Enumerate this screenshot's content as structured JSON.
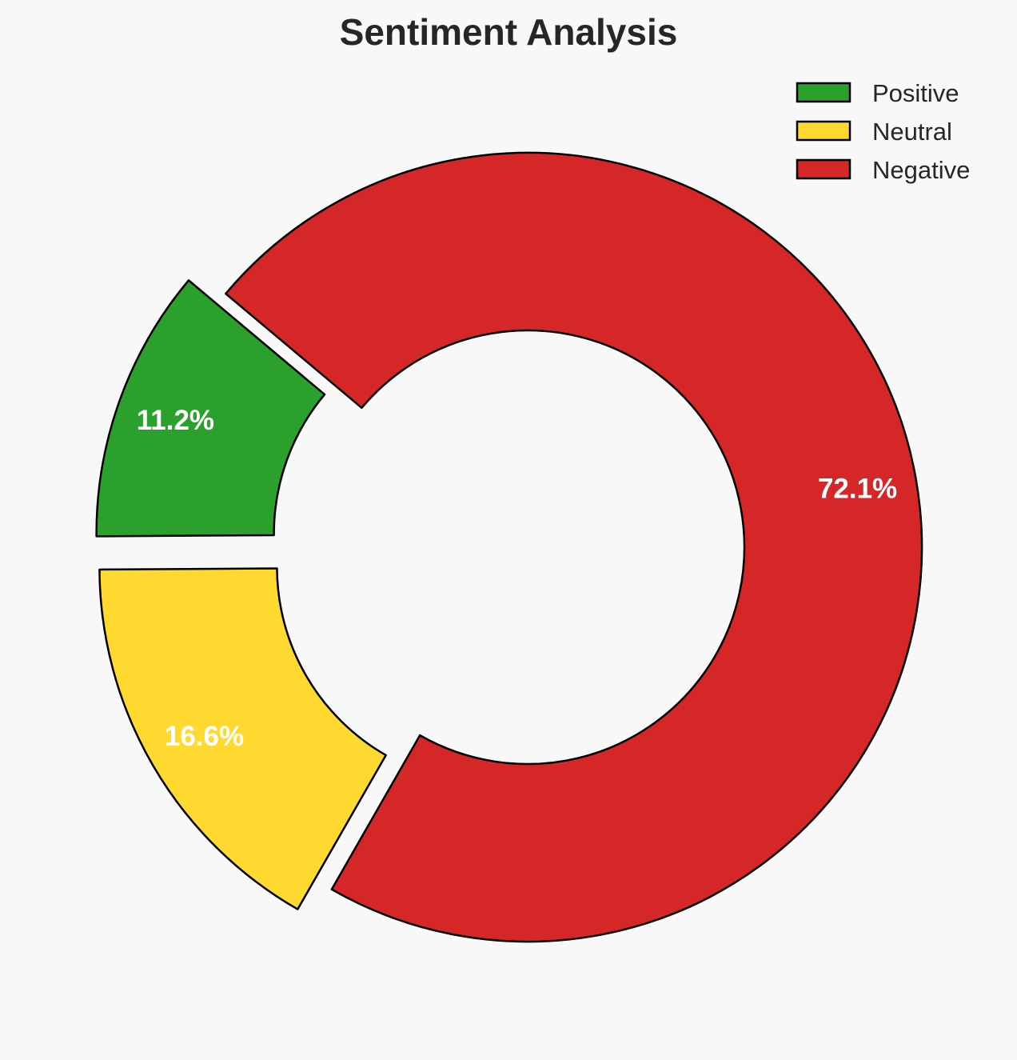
{
  "chart_data": {
    "type": "pie",
    "variant": "donut",
    "title": "Sentiment Analysis",
    "categories": [
      "Positive",
      "Neutral",
      "Negative"
    ],
    "values": [
      11.2,
      16.6,
      72.1
    ],
    "labels": [
      "11.2%",
      "16.6%",
      "72.1%"
    ],
    "colors": [
      "#2ca02c",
      "#ffd92f",
      "#d62728"
    ],
    "explode": [
      0.1,
      0.1,
      0
    ],
    "start_angle_deg": 140,
    "direction": "counterclockwise",
    "legend_placement": "top-right",
    "background": "#f8f8f8"
  }
}
